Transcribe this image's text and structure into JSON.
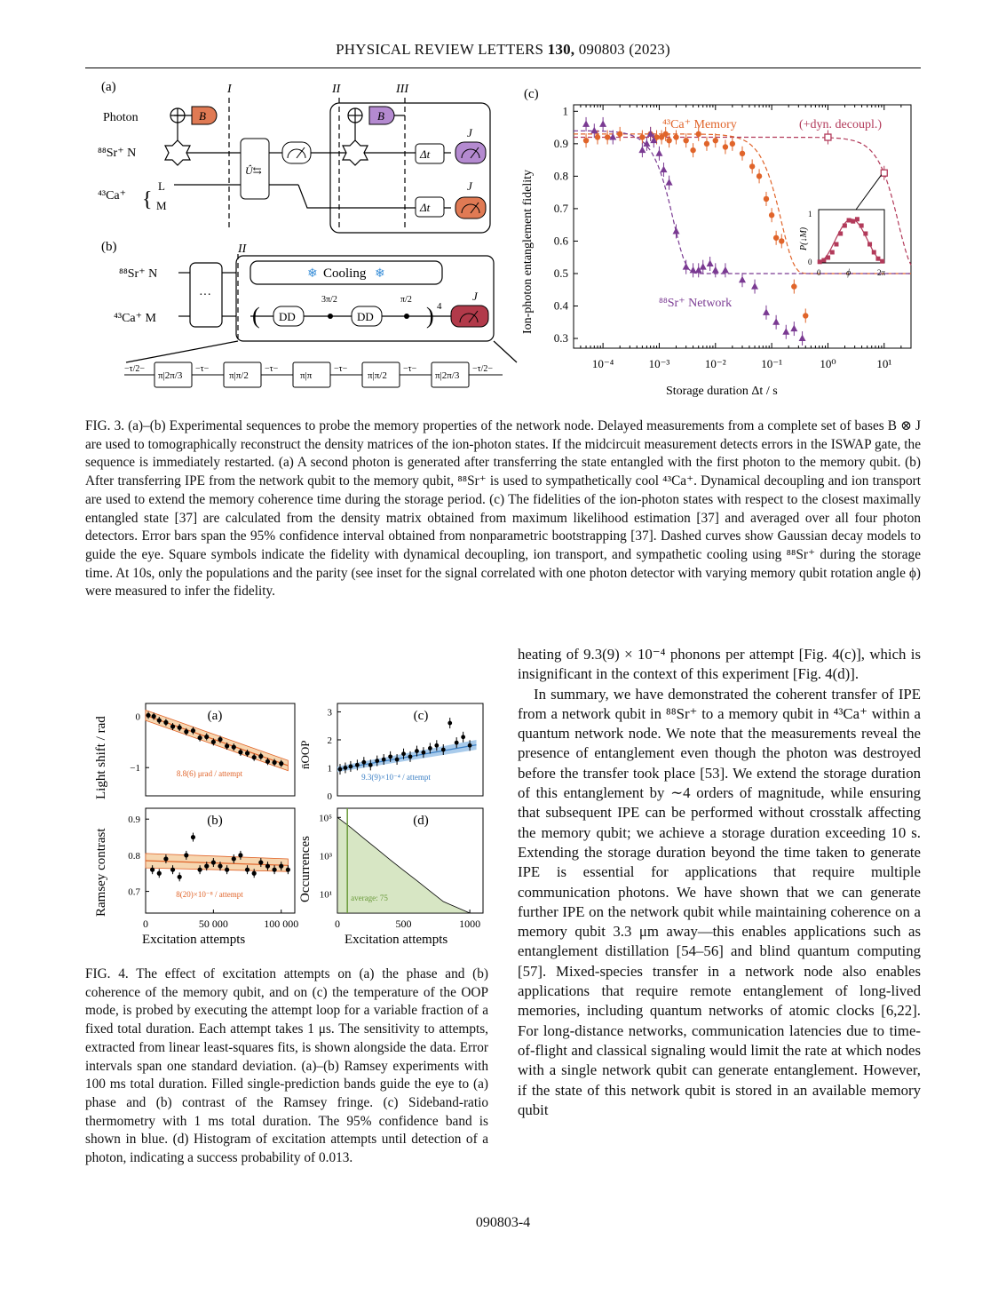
{
  "header": {
    "journal": "PHYSICAL REVIEW LETTERS",
    "volume": "130,",
    "article": "090803 (2023)"
  },
  "fig3": {
    "panel_a_label": "(a)",
    "panel_b_label": "(b)",
    "panel_c_label": "(c)",
    "stage_I": "I",
    "stage_II": "II",
    "stage_III": "III",
    "row_photon": "Photon",
    "row_sr": "⁸⁸Sr⁺ N",
    "row_ca": "⁴³Ca⁺",
    "level_L": "L",
    "level_M": "M",
    "gate_B": "B",
    "gate_J": "J",
    "gate_dt": "Δt",
    "gate_U": "Û⇆",
    "b_sr": "⁸⁸Sr⁺ N",
    "b_ca": "⁴³Ca⁺ M",
    "cooling": "Cooling",
    "dd": "DD",
    "dots": "···",
    "power": "4",
    "pulse_3pi2": "3π/2",
    "pulse_pi2": "π/2",
    "seq": [
      "−τ/2−",
      "π|2π/3",
      "−τ−",
      "π|π/2",
      "−τ−",
      "π|π",
      "−τ−",
      "π|π/2",
      "−τ−",
      "π|2π/3",
      "−τ/2−"
    ],
    "ylabel": "Ion-photon entanglement fidelity",
    "xlabel": "Storage duration Δt / s",
    "legend_ca": "⁴³Ca⁺ Memory",
    "legend_dyn": "(+dyn. decoupl.)",
    "legend_sr": "⁸⁸Sr⁺ Network",
    "inset_ylabel": "P(↓M)",
    "inset_xlabel": "ϕ",
    "inset_x0": "0",
    "inset_x2pi": "2π",
    "inset_y0": "0",
    "inset_y1": "1",
    "colors": {
      "ca": "#e0642a",
      "sr": "#7a3a92",
      "dyn": "#b23a5a",
      "orange_box": "#e07a54",
      "purple_box": "#b48ad0",
      "red_meter": "#b23a4a"
    }
  },
  "chart_data": [
    {
      "type": "scatter",
      "title": "",
      "xlabel": "Storage duration Δt / s",
      "ylabel": "Ion-photon entanglement fidelity",
      "xscale": "log",
      "xlim": [
        3e-05,
        30
      ],
      "ylim": [
        0.27,
        1.02
      ],
      "xticks": [
        "10⁻⁴",
        "10⁻³",
        "10⁻²",
        "10⁻¹",
        "10⁰",
        "10¹"
      ],
      "yticks": [
        "0.3",
        "0.4",
        "0.5",
        "0.6",
        "0.7",
        "0.8",
        "0.9",
        "1"
      ],
      "series": [
        {
          "name": "⁴³Ca⁺ Memory",
          "marker": "circle",
          "color": "#e0642a",
          "x": [
            5e-05,
            8e-05,
            0.00012,
            0.0002,
            0.0005,
            0.0007,
            0.0009,
            0.0011,
            0.0013,
            0.0015,
            0.002,
            0.003,
            0.004,
            0.005,
            0.007,
            0.01,
            0.015,
            0.02,
            0.03,
            0.045,
            0.06,
            0.08,
            0.1,
            0.12,
            0.15,
            0.25,
            0.4
          ],
          "y": [
            0.91,
            0.92,
            0.92,
            0.93,
            0.92,
            0.93,
            0.92,
            0.92,
            0.93,
            0.91,
            0.92,
            0.91,
            0.88,
            0.93,
            0.9,
            0.91,
            0.89,
            0.9,
            0.87,
            0.83,
            0.8,
            0.73,
            0.68,
            0.61,
            0.6,
            0.46,
            0.37
          ]
        },
        {
          "name": "⁸⁸Sr⁺ Network",
          "marker": "triangle",
          "color": "#7a3a92",
          "x": [
            5e-05,
            7e-05,
            0.0001,
            0.00015,
            0.0005,
            0.0006,
            0.0007,
            0.0008,
            0.001,
            0.0012,
            0.0015,
            0.002,
            0.003,
            0.004,
            0.005,
            0.006,
            0.008,
            0.01,
            0.015,
            0.03,
            0.05,
            0.08,
            0.12,
            0.18,
            0.25,
            0.35
          ],
          "y": [
            0.96,
            0.94,
            0.96,
            0.92,
            0.88,
            0.9,
            0.93,
            0.91,
            0.87,
            0.82,
            0.78,
            0.63,
            0.52,
            0.51,
            0.51,
            0.52,
            0.53,
            0.51,
            0.51,
            0.48,
            0.46,
            0.38,
            0.35,
            0.32,
            0.33,
            0.3
          ]
        },
        {
          "name": "(+dyn. decoupl.)",
          "marker": "square",
          "color": "#b23a5a",
          "x": [
            1,
            10
          ],
          "y": [
            0.92,
            0.81
          ]
        }
      ],
      "inset": {
        "type": "scatter",
        "xlabel": "ϕ",
        "ylabel": "P(↓M)",
        "x": [
          0.1,
          0.5,
          0.9,
          1.3,
          1.7,
          2.1,
          2.5,
          2.9,
          3.3,
          3.7,
          4.1,
          4.5,
          4.9,
          5.3,
          5.7,
          6.1
        ],
        "y": [
          0.02,
          0.05,
          0.1,
          0.2,
          0.35,
          0.55,
          0.7,
          0.8,
          0.78,
          0.82,
          0.7,
          0.55,
          0.35,
          0.2,
          0.08,
          0.03
        ]
      }
    },
    {
      "type": "scatter",
      "title": "(a)",
      "ylabel": "Light shift / rad",
      "xlim": [
        0,
        110000
      ],
      "ylim": [
        -1.55,
        0.25
      ],
      "yticks": [
        "0",
        "−1"
      ],
      "fit_label": "8.8(6) μrad / attempt",
      "x": [
        2000,
        6000,
        10000,
        15000,
        20000,
        25000,
        30000,
        35000,
        40000,
        45000,
        50000,
        55000,
        60000,
        65000,
        70000,
        75000,
        80000,
        85000,
        90000,
        95000,
        100000
      ],
      "y": [
        0.02,
        0.0,
        -0.08,
        -0.12,
        -0.2,
        -0.22,
        -0.3,
        -0.28,
        -0.42,
        -0.4,
        -0.5,
        -0.45,
        -0.58,
        -0.6,
        -0.7,
        -0.72,
        -0.8,
        -0.78,
        -0.88,
        -0.9,
        -0.92
      ]
    },
    {
      "type": "scatter",
      "title": "(b)",
      "ylabel": "Ramsey contrast",
      "xlabel": "Excitation attempts",
      "xlim": [
        0,
        110000
      ],
      "ylim": [
        0.64,
        0.93
      ],
      "yticks": [
        "0.9",
        "0.8",
        "0.7"
      ],
      "xticks": [
        "0",
        "50 000",
        "100 000"
      ],
      "fit_label": "8(20)×10⁻⁸ / attempt",
      "x": [
        5000,
        10000,
        15000,
        20000,
        25000,
        30000,
        35000,
        40000,
        45000,
        50000,
        55000,
        60000,
        65000,
        70000,
        75000,
        80000,
        85000,
        90000,
        95000,
        100000,
        105000
      ],
      "y": [
        0.76,
        0.75,
        0.79,
        0.76,
        0.74,
        0.8,
        0.85,
        0.76,
        0.77,
        0.78,
        0.77,
        0.76,
        0.79,
        0.8,
        0.76,
        0.75,
        0.78,
        0.77,
        0.76,
        0.77,
        0.76
      ]
    },
    {
      "type": "scatter",
      "title": "(c)",
      "ylabel": "n̄_OOP",
      "xlim": [
        0,
        1100
      ],
      "ylim": [
        0,
        3.3
      ],
      "yticks": [
        "3",
        "2",
        "1",
        "0"
      ],
      "fit_label": "9.3(9)×10⁻⁴ / attempt",
      "x": [
        20,
        60,
        100,
        150,
        200,
        250,
        300,
        350,
        400,
        450,
        500,
        550,
        600,
        650,
        700,
        750,
        800,
        850,
        900,
        950,
        1000
      ],
      "y": [
        0.95,
        1.0,
        1.05,
        1.1,
        1.2,
        1.1,
        1.25,
        1.3,
        1.4,
        1.3,
        1.5,
        1.4,
        1.6,
        1.55,
        1.7,
        1.8,
        1.65,
        2.6,
        1.9,
        2.1,
        1.8
      ]
    },
    {
      "type": "bar",
      "title": "(d)",
      "ylabel": "Occurrences",
      "xlabel": "Excitation attempts",
      "yscale": "log",
      "xlim": [
        0,
        1100
      ],
      "yticks": [
        "10⁵",
        "10³",
        "10¹"
      ],
      "xticks": [
        "0",
        "500",
        "1000"
      ],
      "annotation": "average: 75",
      "average": 75,
      "x": [
        0,
        100,
        200,
        300,
        400,
        500,
        600,
        700,
        800,
        900,
        1000
      ],
      "values": [
        100000,
        30000,
        8000,
        2200,
        600,
        170,
        50,
        14,
        4,
        2,
        1
      ]
    }
  ],
  "fig3_caption": {
    "label": "FIG. 3.",
    "text": " (a)–(b) Experimental sequences to probe the memory properties of the network node. Delayed measurements from a complete set of bases B ⊗ J are used to tomographically reconstruct the density matrices of the ion-photon states. If the midcircuit measurement detects errors in the ISWAP gate, the sequence is immediately restarted. (a) A second photon is generated after transferring the state entangled with the first photon to the memory qubit. (b) After transferring IPE from the network qubit to the memory qubit, ⁸⁸Sr⁺ is used to sympathetically cool ⁴³Ca⁺. Dynamical decoupling and ion transport are used to extend the memory coherence time during the storage period. (c) The fidelities of the ion-photon states with respect to the closest maximally entangled state [37] are calculated from the density matrix obtained from maximum likelihood estimation [37] and averaged over all four photon detectors. Error bars span the 95% confidence interval obtained from nonparametric bootstrapping [37]. Dashed curves show Gaussian decay models to guide the eye. Square symbols indicate the fidelity with dynamical decoupling, ion transport, and sympathetic cooling using ⁸⁸Sr⁺ during the storage time. At 10s, only the populations and the parity (see inset for the signal correlated with one photon detector with varying memory qubit rotation angle ϕ) were measured to infer the fidelity."
  },
  "fig4": {
    "ylabel_top": "Light shift / rad",
    "ylabel_bottom": "Ramsey contrast",
    "ylabel_c": "n̄OOP",
    "ylabel_d": "Occurrences",
    "xlabel": "Excitation attempts",
    "colors": {
      "fit": "#e0642a",
      "band": "#f6d6b0",
      "blue": "#3b7fc4",
      "green": "#6a9a3a",
      "hist": "#d7e6c4"
    }
  },
  "fig4_caption": {
    "label": "FIG. 4.",
    "text": " The effect of excitation attempts on (a) the phase and (b) coherence of the memory qubit, and on (c) the temperature of the OOP mode, is probed by executing the attempt loop for a variable fraction of a fixed total duration. Each attempt takes 1 μs. The sensitivity to attempts, extracted from linear least-squares fits, is shown alongside the data. Error intervals span one standard deviation. (a)–(b) Ramsey experiments with 100 ms total duration. Filled single-prediction bands guide the eye to (a) phase and (b) contrast of the Ramsey fringe. (c) Sideband-ratio thermometry with 1 ms total duration. The 95% confidence band is shown in blue. (d) Histogram of excitation attempts until detection of a photon, indicating a success probability of 0.013."
  },
  "body": {
    "p1": "heating of 9.3(9) × 10⁻⁴ phonons per attempt [Fig. 4(c)], which is insignificant in the context of this experiment [Fig. 4(d)].",
    "p2": "In summary, we have demonstrated the coherent transfer of IPE from a network qubit in ⁸⁸Sr⁺ to a memory qubit in ⁴³Ca⁺ within a quantum network node. We note that the measurements reveal the presence of entanglement even though the photon was destroyed before the transfer took place [53]. We extend the storage duration of this entanglement by ∼4 orders of magnitude, while ensuring that subsequent IPE can be performed without crosstalk affecting the memory qubit; we achieve a storage duration exceeding 10 s. Extending the storage duration beyond the time taken to generate IPE is essential for applications that require multiple communication photons. We have shown that we can generate further IPE on the network qubit while maintaining coherence on a memory qubit 3.3 μm away—this enables applications such as entanglement distillation [54–56] and blind quantum computing [57]. Mixed-species transfer in a network node also enables applications that require remote entanglement of long-lived memories, including quantum networks of atomic clocks [6,22]. For long-distance networks, communication latencies due to time-of-flight and classical signaling would limit the rate at which nodes with a single network qubit can generate entanglement. However, if the state of this network qubit is stored in an available memory qubit"
  },
  "page_number": "090803-4"
}
